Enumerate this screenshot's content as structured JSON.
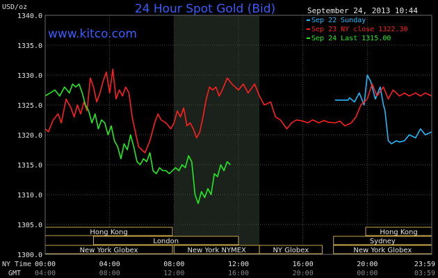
{
  "chart_data": {
    "type": "line",
    "title": "24 Hour Spot Gold (Bid)",
    "unit_label": "USD/oz",
    "watermark": "www.kitco.com",
    "timestamp": "September 24, 2013 10:44",
    "ylim": [
      1300,
      1340
    ],
    "y_ticks": [
      "1300.0",
      "1305.0",
      "1310.0",
      "1315.0",
      "1320.0",
      "1325.0",
      "1330.0",
      "1335.0",
      "1340.0"
    ],
    "x_axis_label_ny": "NY Time",
    "x_axis_label_gmt": "GMT",
    "x_ticks_ny": [
      "00:00",
      "04:00",
      "08:00",
      "12:00",
      "16:00",
      "20:00",
      "23:59"
    ],
    "x_ticks_gmt": [
      "04:00",
      "08:00",
      "12:00",
      "16:00",
      "20:00",
      "00:00",
      "03:59"
    ],
    "legend": [
      {
        "label": "Sep 22 Sunday",
        "color": "#22bbff"
      },
      {
        "label": "Sep 23 NY close 1322.30",
        "color": "#ff2020"
      },
      {
        "label": "Sep 24 Last 1315.00",
        "color": "#22ee22"
      }
    ],
    "sessions": {
      "row1": [
        {
          "label": "Hong Kong",
          "start": 0.0,
          "end": 7.9
        },
        {
          "label": "Hong Kong",
          "start": 19.9,
          "end": 24.0
        }
      ],
      "row2": [
        {
          "label": "London",
          "start": 3.0,
          "end": 12.0
        },
        {
          "label": "Sydney",
          "start": 17.9,
          "end": 24.0
        }
      ],
      "row3": [
        {
          "label": "New York Globex",
          "start": 0.0,
          "end": 7.9
        },
        {
          "label": "New York NYMEX",
          "start": 8.0,
          "end": 13.3
        },
        {
          "label": "NY Globex",
          "start": 13.3,
          "end": 17.2
        },
        {
          "label": "New York Globex",
          "start": 17.9,
          "end": 24.0
        }
      ]
    },
    "highlight_range": [
      8.0,
      13.3
    ],
    "series": [
      {
        "name": "Sep 22 Sunday",
        "color": "#22bbff",
        "x": [
          18.0,
          18.8,
          18.9,
          19.2,
          19.5,
          19.8,
          20.0,
          20.2,
          20.5,
          20.8,
          21.0,
          21.1,
          21.3,
          21.5,
          21.8,
          22.0,
          22.3,
          22.6,
          23.0,
          23.3,
          23.6,
          24.0
        ],
        "y": [
          1325.8,
          1325.8,
          1326.2,
          1325.5,
          1327.0,
          1325.0,
          1330.0,
          1329.0,
          1326.0,
          1328.0,
          1325.0,
          1324.0,
          1319.0,
          1318.5,
          1319.0,
          1318.8,
          1319.0,
          1320.0,
          1319.5,
          1321.0,
          1320.0,
          1320.5
        ]
      },
      {
        "name": "Sep 23 NY close 1322.30",
        "color": "#ff2020",
        "x": [
          0.0,
          0.2,
          0.5,
          0.8,
          1.0,
          1.3,
          1.6,
          1.8,
          2.0,
          2.2,
          2.4,
          2.6,
          2.8,
          3.0,
          3.2,
          3.4,
          3.6,
          3.8,
          4.0,
          4.2,
          4.4,
          4.6,
          4.8,
          5.0,
          5.2,
          5.4,
          5.6,
          5.8,
          6.0,
          6.2,
          6.5,
          6.8,
          7.0,
          7.2,
          7.5,
          7.8,
          8.0,
          8.2,
          8.4,
          8.6,
          8.8,
          9.0,
          9.2,
          9.4,
          9.6,
          9.8,
          10.0,
          10.2,
          10.4,
          10.6,
          10.8,
          11.0,
          11.3,
          11.6,
          12.0,
          12.3,
          12.6,
          13.0,
          13.3,
          13.6,
          14.0,
          14.3,
          14.6,
          15.0,
          15.3,
          15.6,
          16.0,
          16.3,
          16.6,
          17.0,
          17.3,
          17.6,
          18.0,
          18.3,
          18.6,
          19.0,
          19.3,
          19.6,
          20.0,
          20.3,
          20.6,
          21.0,
          21.3,
          21.6,
          22.0,
          22.3,
          22.6,
          23.0,
          23.3,
          23.6,
          24.0
        ],
        "y": [
          1321.0,
          1320.5,
          1322.5,
          1323.5,
          1322.0,
          1326.0,
          1324.5,
          1323.0,
          1325.0,
          1323.5,
          1325.5,
          1324.0,
          1329.5,
          1328.0,
          1325.5,
          1327.0,
          1329.0,
          1330.5,
          1327.0,
          1331.0,
          1326.0,
          1327.5,
          1326.5,
          1328.0,
          1327.0,
          1323.0,
          1320.5,
          1318.0,
          1317.5,
          1317.0,
          1319.0,
          1322.0,
          1323.5,
          1322.5,
          1322.0,
          1321.0,
          1322.0,
          1324.0,
          1323.0,
          1324.5,
          1321.5,
          1322.0,
          1321.0,
          1319.5,
          1320.5,
          1323.0,
          1326.0,
          1328.0,
          1327.5,
          1328.0,
          1326.5,
          1327.5,
          1329.5,
          1328.5,
          1327.5,
          1328.5,
          1327.0,
          1328.5,
          1326.5,
          1325.0,
          1325.5,
          1323.0,
          1322.5,
          1321.0,
          1322.0,
          1322.5,
          1322.3,
          1322.0,
          1322.5,
          1322.0,
          1322.4,
          1322.1,
          1322.0,
          1322.3,
          1321.5,
          1322.0,
          1323.0,
          1325.0,
          1326.0,
          1328.5,
          1326.5,
          1328.0,
          1326.0,
          1327.5,
          1326.5,
          1327.0,
          1326.5,
          1327.0,
          1326.5,
          1327.0,
          1326.5
        ]
      },
      {
        "name": "Sep 24 Last 1315.00",
        "color": "#22ee22",
        "x": [
          0.0,
          0.3,
          0.6,
          0.9,
          1.2,
          1.5,
          1.7,
          1.9,
          2.1,
          2.3,
          2.5,
          2.7,
          2.9,
          3.1,
          3.3,
          3.5,
          3.7,
          3.9,
          4.1,
          4.3,
          4.5,
          4.7,
          4.9,
          5.1,
          5.3,
          5.5,
          5.7,
          5.9,
          6.1,
          6.3,
          6.5,
          6.7,
          6.9,
          7.1,
          7.3,
          7.5,
          7.7,
          7.9,
          8.1,
          8.3,
          8.5,
          8.7,
          8.9,
          9.1,
          9.3,
          9.5,
          9.7,
          9.9,
          10.1,
          10.3,
          10.5,
          10.7,
          10.9,
          11.1,
          11.3,
          11.5
        ],
        "y": [
          1326.5,
          1327.0,
          1327.5,
          1326.5,
          1328.0,
          1327.0,
          1328.5,
          1328.0,
          1328.5,
          1327.0,
          1325.0,
          1324.0,
          1322.0,
          1323.5,
          1321.0,
          1322.5,
          1322.0,
          1320.0,
          1321.5,
          1319.0,
          1318.0,
          1316.0,
          1318.5,
          1317.5,
          1320.0,
          1318.0,
          1315.5,
          1315.0,
          1316.0,
          1315.5,
          1317.0,
          1314.0,
          1313.5,
          1314.5,
          1314.0,
          1314.0,
          1313.5,
          1314.0,
          1314.5,
          1314.0,
          1315.0,
          1314.5,
          1316.5,
          1315.5,
          1310.0,
          1308.5,
          1310.5,
          1309.5,
          1311.0,
          1310.0,
          1313.5,
          1313.0,
          1315.0,
          1314.0,
          1315.5,
          1315.0
        ]
      }
    ]
  }
}
